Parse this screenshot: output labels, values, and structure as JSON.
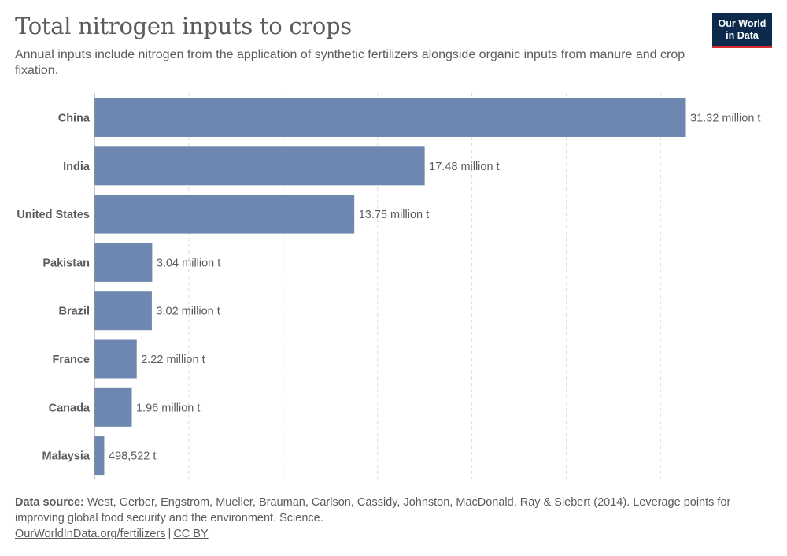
{
  "header": {
    "title": "Total nitrogen inputs to crops",
    "subtitle": "Annual inputs include nitrogen from the application of synthetic fertilizers alongside organic inputs from manure and crop fixation.",
    "logo_line1": "Our World",
    "logo_line2": "in Data"
  },
  "chart_data": {
    "type": "bar",
    "orientation": "horizontal",
    "categories": [
      "China",
      "India",
      "United States",
      "Pakistan",
      "Brazil",
      "France",
      "Canada",
      "Malaysia"
    ],
    "values": [
      31320000,
      17480000,
      13750000,
      3040000,
      3020000,
      2220000,
      1960000,
      498522
    ],
    "value_labels": [
      "31.32 million t",
      "17.48 million t",
      "13.75 million t",
      "3.04 million t",
      "3.02 million t",
      "2.22 million t",
      "1.96 million t",
      "498,522 t"
    ],
    "xlim": [
      0,
      31320000
    ],
    "grid_step": 5000000,
    "grid": true,
    "bar_color": "#6d87b0"
  },
  "footer": {
    "source_label": "Data source:",
    "source_text": "West, Gerber, Engstrom, Mueller, Brauman, Carlson, Cassidy, Johnston, MacDonald, Ray & Siebert (2014). Leverage points for improving global food security and the environment. Science.",
    "link_text": "OurWorldInData.org/fertilizers",
    "separator": "|",
    "license_text": "CC BY"
  }
}
